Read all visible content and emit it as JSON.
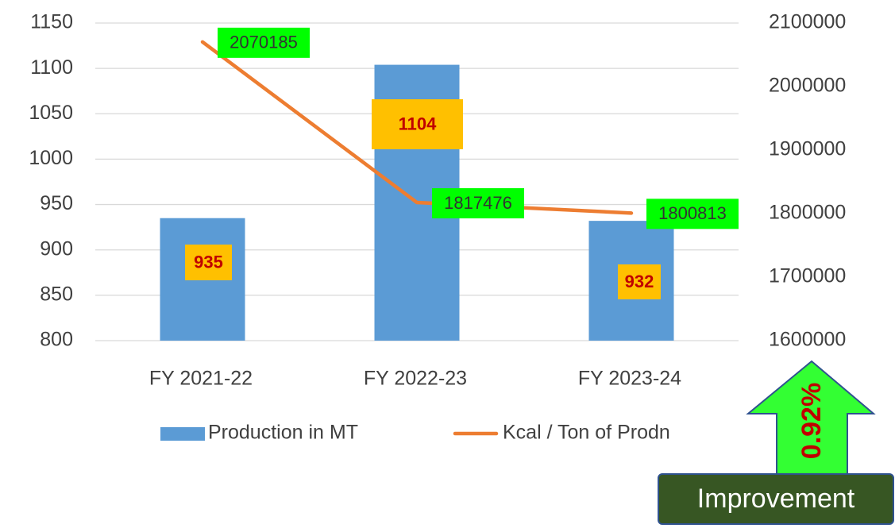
{
  "chart_data": {
    "type": "bar",
    "categories": [
      "FY 2021-22",
      "FY 2022-23",
      "FY 2023-24"
    ],
    "series": [
      {
        "name": "Production in MT",
        "type": "bar",
        "color": "#5b9bd5",
        "values": [
          935,
          1104,
          932
        ]
      },
      {
        "name": "Kcal / Ton of Prodn",
        "type": "line",
        "axis": "y2",
        "color": "#ed7d31",
        "values": [
          2070185,
          1817476,
          1800813
        ]
      }
    ],
    "ylim": [
      800,
      1150
    ],
    "yticks": [
      800,
      850,
      900,
      950,
      1000,
      1050,
      1100,
      1150
    ],
    "y2lim": [
      1600000,
      2100000
    ],
    "y2ticks": [
      1600000,
      1700000,
      1800000,
      1900000,
      2000000,
      2100000
    ],
    "grid": true,
    "legend": "bottom",
    "annotations": [
      "0.92%",
      "Improvement"
    ]
  }
}
